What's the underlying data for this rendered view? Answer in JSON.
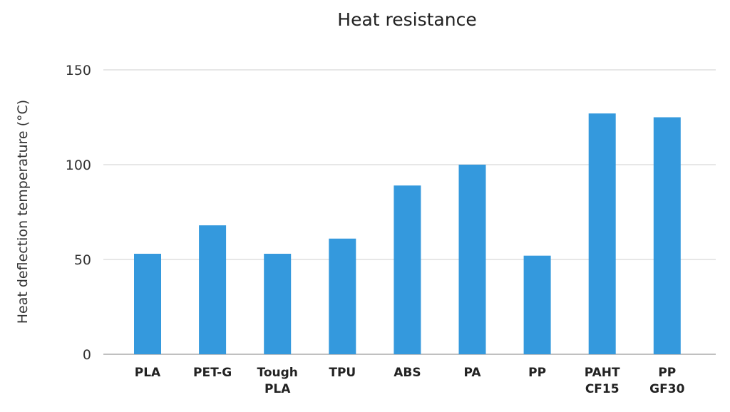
{
  "chart_data": {
    "type": "bar",
    "title": "Heat resistance",
    "xlabel": "",
    "ylabel": "Heat deflection temperature (°C)",
    "categories": [
      [
        "PLA"
      ],
      [
        "PET-G"
      ],
      [
        "Tough",
        "PLA"
      ],
      [
        "TPU"
      ],
      [
        "ABS"
      ],
      [
        "PA"
      ],
      [
        "PP"
      ],
      [
        "PAHT",
        "CF15"
      ],
      [
        "PP",
        "GF30"
      ]
    ],
    "values": [
      53,
      68,
      53,
      61,
      89,
      100,
      52,
      127,
      125
    ],
    "ylim": [
      0,
      150
    ],
    "yticks": [
      0,
      50,
      100,
      150
    ],
    "grid": true,
    "legend": "none",
    "colors": {
      "bar": "#3499dd"
    }
  }
}
